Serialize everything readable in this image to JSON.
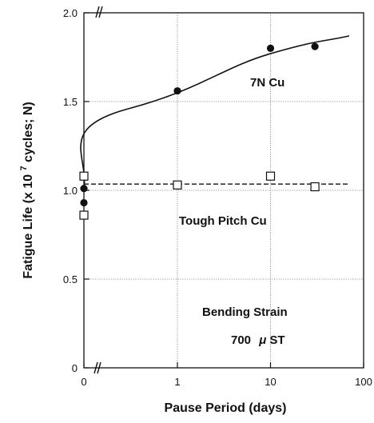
{
  "chart_data": {
    "type": "scatter",
    "xlabel": "Pause Period  (days)",
    "ylabel_prefix": "Fatigue Life  (x 10",
    "ylabel_exp": "7",
    "ylabel_suffix": " cycles; N)",
    "x_scale": "log (with broken axis at 0)",
    "xlim": [
      0,
      100
    ],
    "ylim": [
      0,
      2.0
    ],
    "grid": true,
    "x_ticks": [
      {
        "value": 0,
        "label": "0"
      },
      {
        "value": 1,
        "label": "1"
      },
      {
        "value": 10,
        "label": "10"
      },
      {
        "value": 100,
        "label": "100"
      }
    ],
    "y_ticks": [
      {
        "value": 0,
        "label": "0"
      },
      {
        "value": 0.5,
        "label": "0.5"
      },
      {
        "value": 1.0,
        "label": "1.0"
      },
      {
        "value": 1.5,
        "label": "1.5"
      },
      {
        "value": 2.0,
        "label": "2.0"
      }
    ],
    "series": [
      {
        "name": "7N Cu",
        "marker": "filled-circle",
        "color": "#111111",
        "points": [
          {
            "x": 0,
            "y": 1.01
          },
          {
            "x": 0,
            "y": 0.93
          },
          {
            "x": 1,
            "y": 1.56
          },
          {
            "x": 10,
            "y": 1.8
          },
          {
            "x": 30,
            "y": 1.81
          }
        ],
        "fit": "solid"
      },
      {
        "name": "Tough Pitch Cu",
        "marker": "open-square",
        "color": "#111111",
        "points": [
          {
            "x": 0,
            "y": 1.08
          },
          {
            "x": 0,
            "y": 0.86
          },
          {
            "x": 1,
            "y": 1.03
          },
          {
            "x": 10,
            "y": 1.08
          },
          {
            "x": 30,
            "y": 1.02
          }
        ],
        "fit": "dashed"
      }
    ],
    "annotations": {
      "seven_n": "7N Cu",
      "tough": "Tough Pitch Cu",
      "bending_line1": "Bending Strain",
      "bending_line2_value": "700",
      "bending_line2_unit_mu": "μ",
      "bending_line2_unit": "ST"
    }
  }
}
